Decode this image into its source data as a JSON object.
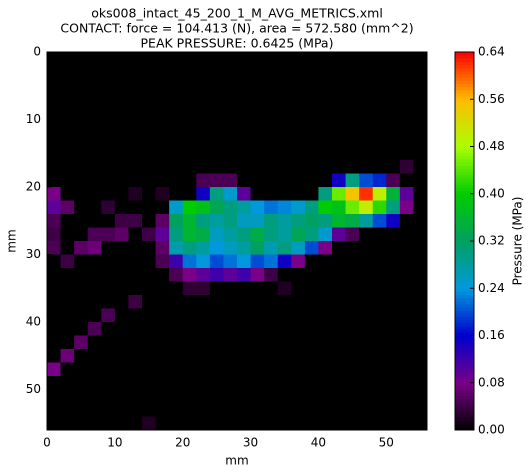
{
  "chart_data": {
    "type": "heatmap",
    "title": [
      "oks008_intact_45_200_1_M_AVG_METRICS.xml",
      "CONTACT: force = 104.413 (N), area = 572.580 (mm^2)",
      "PEAK PRESSURE: 0.6425 (MPa)"
    ],
    "x_label": "mm",
    "y_label": "mm",
    "colorbar_label": "Pressure (MPa)",
    "xlim": [
      0,
      56
    ],
    "ylim": [
      56,
      0
    ],
    "xticks": [
      0,
      10,
      20,
      30,
      40,
      50
    ],
    "yticks": [
      0,
      10,
      20,
      30,
      40,
      50
    ],
    "clim": [
      0,
      0.64
    ],
    "cticks": [
      {
        "value": 0,
        "label": "0.00"
      },
      {
        "value": 0.08,
        "label": "0.08"
      },
      {
        "value": 0.16,
        "label": "0.16"
      },
      {
        "value": 0.24,
        "label": "0.24"
      },
      {
        "value": 0.32,
        "label": "0.32"
      },
      {
        "value": 0.4,
        "label": "0.40"
      },
      {
        "value": 0.48,
        "label": "0.48"
      },
      {
        "value": 0.56,
        "label": "0.56"
      },
      {
        "value": 0.64,
        "label": "0.64"
      }
    ],
    "colormap": [
      "#000000",
      "#7a0088",
      "#0000cc",
      "#0099dd",
      "#00a060",
      "#00cc00",
      "#aaff00",
      "#ffbb00",
      "#ff0000"
    ],
    "z": [
      [
        0,
        0,
        0,
        0,
        0,
        0,
        0,
        0,
        0,
        0,
        0,
        0,
        0,
        0,
        0,
        0,
        0,
        0,
        0,
        0,
        0,
        0,
        0,
        0,
        0,
        0,
        0,
        0
      ],
      [
        0,
        0,
        0,
        0,
        0,
        0,
        0,
        0,
        0,
        0,
        0,
        0,
        0,
        0,
        0,
        0,
        0,
        0,
        0,
        0,
        0,
        0,
        0,
        0,
        0,
        0,
        0,
        0
      ],
      [
        0,
        0,
        0,
        0,
        0,
        0,
        0,
        0,
        0,
        0,
        0,
        0,
        0,
        0,
        0,
        0,
        0,
        0,
        0,
        0,
        0,
        0,
        0,
        0,
        0,
        0,
        0,
        0
      ],
      [
        0,
        0,
        0,
        0,
        0,
        0,
        0,
        0,
        0,
        0,
        0,
        0,
        0,
        0,
        0,
        0,
        0,
        0,
        0,
        0,
        0,
        0,
        0,
        0,
        0,
        0,
        0,
        0
      ],
      [
        0,
        0,
        0,
        0,
        0,
        0,
        0,
        0,
        0,
        0,
        0,
        0,
        0,
        0,
        0,
        0,
        0,
        0,
        0,
        0,
        0,
        0,
        0,
        0,
        0,
        0,
        0,
        0
      ],
      [
        0,
        0,
        0,
        0,
        0,
        0,
        0,
        0,
        0,
        0,
        0,
        0,
        0,
        0,
        0,
        0,
        0,
        0,
        0,
        0,
        0,
        0,
        0,
        0,
        0,
        0,
        0,
        0
      ],
      [
        0,
        0,
        0,
        0,
        0,
        0,
        0,
        0,
        0,
        0,
        0,
        0,
        0,
        0,
        0,
        0,
        0,
        0,
        0,
        0,
        0,
        0,
        0,
        0,
        0,
        0,
        0,
        0
      ],
      [
        0,
        0,
        0,
        0,
        0,
        0,
        0,
        0,
        0,
        0,
        0,
        0,
        0,
        0,
        0,
        0,
        0,
        0,
        0,
        0,
        0,
        0,
        0,
        0,
        0,
        0,
        0,
        0
      ],
      [
        0,
        0,
        0,
        0,
        0,
        0,
        0,
        0,
        0,
        0,
        0,
        0,
        0,
        0,
        0,
        0,
        0,
        0,
        0,
        0,
        0,
        0,
        0,
        0,
        0,
        0,
        0.03,
        0
      ],
      [
        0,
        0,
        0,
        0,
        0,
        0,
        0,
        0,
        0,
        0,
        0,
        0.05,
        0.05,
        0.05,
        0,
        0,
        0,
        0,
        0,
        0,
        0,
        0.15,
        0.3,
        0.2,
        0.18,
        0.05,
        0,
        0
      ],
      [
        0.08,
        0,
        0,
        0,
        0,
        0,
        0.02,
        0,
        0.02,
        0,
        0,
        0.15,
        0.3,
        0.25,
        0.1,
        0,
        0,
        0,
        0,
        0,
        0.3,
        0.45,
        0.55,
        0.62,
        0.5,
        0.35,
        0.1,
        0
      ],
      [
        0.1,
        0.06,
        0,
        0,
        0.03,
        0,
        0,
        0,
        0,
        0.25,
        0.4,
        0.38,
        0.33,
        0.3,
        0.28,
        0.24,
        0.22,
        0.23,
        0.25,
        0.3,
        0.4,
        0.38,
        0.45,
        0.5,
        0.42,
        0.3,
        0.08,
        0
      ],
      [
        0.05,
        0,
        0,
        0,
        0,
        0.04,
        0.04,
        0,
        0.06,
        0.32,
        0.36,
        0.3,
        0.28,
        0.3,
        0.26,
        0.26,
        0.3,
        0.28,
        0.3,
        0.32,
        0.3,
        0.36,
        0.34,
        0.28,
        0.2,
        0.15,
        0,
        0
      ],
      [
        0.04,
        0,
        0,
        0.05,
        0.05,
        0.06,
        0,
        0.04,
        0.1,
        0.3,
        0.36,
        0.34,
        0.26,
        0.28,
        0.3,
        0.34,
        0.3,
        0.28,
        0.33,
        0.3,
        0.25,
        0.1,
        0.05,
        0,
        0,
        0,
        0,
        0
      ],
      [
        0.05,
        0,
        0.06,
        0.07,
        0,
        0,
        0,
        0,
        0.06,
        0.27,
        0.3,
        0.28,
        0.24,
        0.26,
        0.28,
        0.32,
        0.27,
        0.3,
        0.26,
        0.2,
        0.08,
        0,
        0,
        0,
        0,
        0,
        0,
        0
      ],
      [
        0,
        0.04,
        0,
        0,
        0,
        0,
        0,
        0,
        0.05,
        0.12,
        0.22,
        0.24,
        0.2,
        0.22,
        0.24,
        0.2,
        0.22,
        0.15,
        0.08,
        0,
        0,
        0,
        0,
        0,
        0,
        0,
        0,
        0
      ],
      [
        0,
        0,
        0,
        0,
        0,
        0,
        0,
        0,
        0,
        0.05,
        0.08,
        0.1,
        0.12,
        0.1,
        0.12,
        0.08,
        0.04,
        0,
        0,
        0,
        0,
        0,
        0,
        0,
        0,
        0,
        0,
        0
      ],
      [
        0,
        0,
        0,
        0,
        0,
        0,
        0,
        0,
        0,
        0,
        0.03,
        0.03,
        0,
        0,
        0,
        0,
        0,
        0.02,
        0,
        0,
        0,
        0,
        0,
        0,
        0,
        0,
        0,
        0
      ],
      [
        0,
        0,
        0,
        0,
        0,
        0,
        0.04,
        0,
        0,
        0,
        0,
        0,
        0,
        0,
        0,
        0,
        0,
        0,
        0,
        0,
        0,
        0,
        0,
        0,
        0,
        0,
        0,
        0
      ],
      [
        0,
        0,
        0,
        0,
        0.05,
        0,
        0,
        0,
        0,
        0,
        0,
        0,
        0,
        0,
        0,
        0,
        0,
        0,
        0,
        0,
        0,
        0,
        0,
        0,
        0,
        0,
        0,
        0
      ],
      [
        0,
        0,
        0,
        0.05,
        0,
        0,
        0,
        0,
        0,
        0,
        0,
        0,
        0,
        0,
        0,
        0,
        0,
        0,
        0,
        0,
        0,
        0,
        0,
        0,
        0,
        0,
        0,
        0
      ],
      [
        0,
        0,
        0.06,
        0,
        0,
        0,
        0,
        0,
        0,
        0,
        0,
        0,
        0,
        0,
        0,
        0,
        0,
        0,
        0,
        0,
        0,
        0,
        0,
        0,
        0,
        0,
        0,
        0
      ],
      [
        0,
        0.07,
        0,
        0,
        0,
        0,
        0,
        0,
        0,
        0,
        0,
        0,
        0,
        0,
        0,
        0,
        0,
        0,
        0,
        0,
        0,
        0,
        0,
        0,
        0,
        0,
        0,
        0
      ],
      [
        0.08,
        0,
        0,
        0,
        0,
        0,
        0,
        0,
        0,
        0,
        0,
        0,
        0,
        0,
        0,
        0,
        0,
        0,
        0,
        0,
        0,
        0,
        0,
        0,
        0,
        0,
        0,
        0
      ],
      [
        0,
        0,
        0,
        0,
        0,
        0,
        0,
        0,
        0,
        0,
        0,
        0,
        0,
        0,
        0,
        0,
        0,
        0,
        0,
        0,
        0,
        0,
        0,
        0,
        0,
        0,
        0,
        0
      ],
      [
        0,
        0,
        0,
        0,
        0,
        0,
        0,
        0,
        0,
        0,
        0,
        0,
        0,
        0,
        0,
        0,
        0,
        0,
        0,
        0,
        0,
        0,
        0,
        0,
        0,
        0,
        0,
        0
      ],
      [
        0,
        0,
        0,
        0,
        0,
        0,
        0,
        0,
        0,
        0,
        0,
        0,
        0,
        0,
        0,
        0,
        0,
        0,
        0,
        0,
        0,
        0,
        0,
        0,
        0,
        0,
        0,
        0
      ],
      [
        0,
        0,
        0,
        0,
        0,
        0,
        0,
        0.02,
        0,
        0,
        0,
        0,
        0,
        0,
        0,
        0,
        0,
        0,
        0,
        0,
        0,
        0,
        0,
        0,
        0,
        0,
        0,
        0
      ]
    ]
  }
}
